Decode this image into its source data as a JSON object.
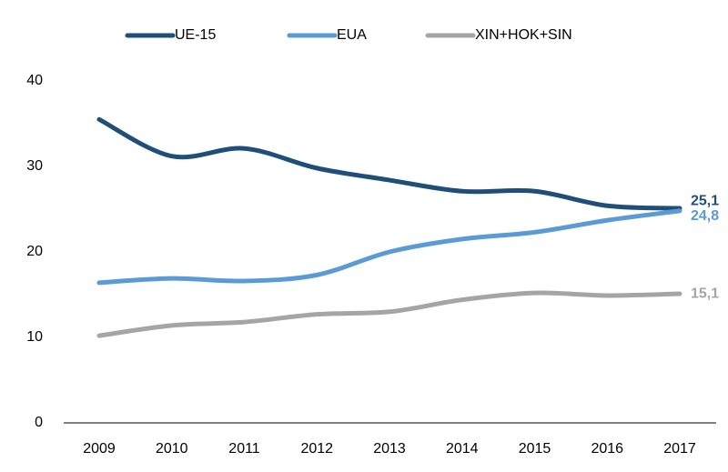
{
  "chart_data": {
    "type": "line",
    "categories": [
      "2009",
      "2010",
      "2011",
      "2012",
      "2013",
      "2014",
      "2015",
      "2016",
      "2017"
    ],
    "series": [
      {
        "name": "UE-15",
        "color": "#1f4e79",
        "values": [
          35.5,
          31.2,
          32.1,
          29.8,
          28.4,
          27.1,
          27.1,
          25.4,
          25.1
        ],
        "value_labels": [
          null,
          null,
          null,
          null,
          null,
          null,
          null,
          null,
          "25,1"
        ]
      },
      {
        "name": "EUA",
        "color": "#5b9bd5",
        "values": [
          16.4,
          16.9,
          16.6,
          17.3,
          20.0,
          21.5,
          22.3,
          23.7,
          24.8
        ],
        "value_labels": [
          null,
          null,
          null,
          null,
          null,
          null,
          null,
          null,
          "24,8"
        ]
      },
      {
        "name": "XIN+HOK+SIN",
        "color": "#a5a5a5",
        "values": [
          10.2,
          11.4,
          11.8,
          12.7,
          13.0,
          14.4,
          15.2,
          14.9,
          15.1
        ],
        "value_labels": [
          null,
          null,
          null,
          null,
          null,
          null,
          null,
          null,
          "15,1"
        ]
      }
    ],
    "ylim": [
      0,
      40
    ],
    "yticks": [
      0,
      10,
      20,
      30,
      40
    ],
    "grid": false,
    "legend": "top",
    "smooth": true
  }
}
